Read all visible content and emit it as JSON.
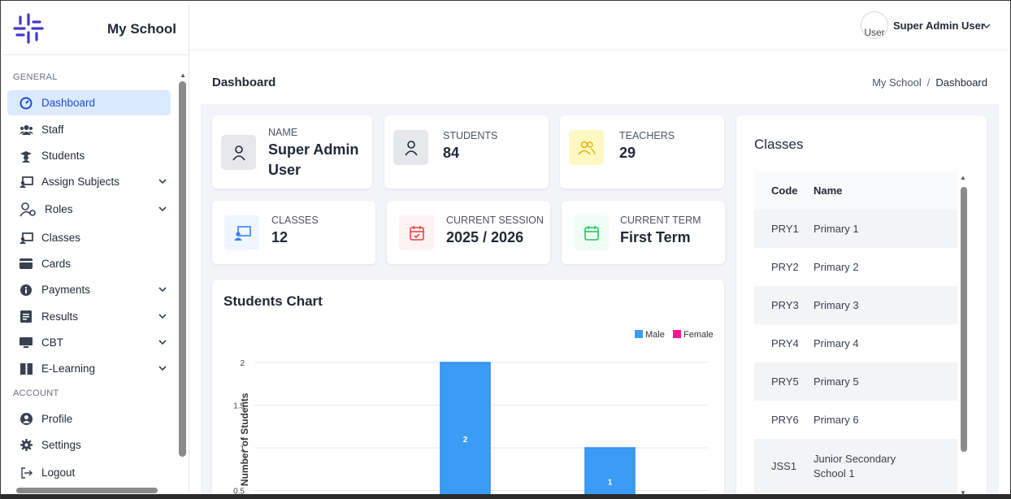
{
  "sidebar": {
    "app_name": "My School",
    "section_general": "GENERAL",
    "section_account": "ACCOUNT",
    "items": [
      {
        "label": "Dashboard",
        "icon": "gauge-icon",
        "active": true
      },
      {
        "label": "Staff",
        "icon": "users-icon"
      },
      {
        "label": "Students",
        "icon": "graduation-cap-icon"
      },
      {
        "label": "Assign Subjects",
        "icon": "chalkboard-icon",
        "chevron": true
      },
      {
        "label": "Roles",
        "icon": "user-gear-icon",
        "chevron": true
      },
      {
        "label": "Classes",
        "icon": "chalkboard-icon"
      },
      {
        "label": "Cards",
        "icon": "card-icon"
      },
      {
        "label": "Payments",
        "icon": "info-icon",
        "chevron": true
      },
      {
        "label": "Results",
        "icon": "list-icon",
        "chevron": true
      },
      {
        "label": "CBT",
        "icon": "monitor-icon",
        "chevron": true
      },
      {
        "label": "E-Learning",
        "icon": "book-icon",
        "chevron": true
      }
    ],
    "account_items": [
      {
        "label": "Profile",
        "icon": "user-circle-icon"
      },
      {
        "label": "Settings",
        "icon": "gear-icon"
      },
      {
        "label": "Logout",
        "icon": "logout-icon"
      }
    ]
  },
  "topbar": {
    "avatar_alt": "User",
    "user_name": "Super Admin User"
  },
  "header": {
    "title": "Dashboard",
    "breadcrumb": [
      "My School",
      "Dashboard"
    ]
  },
  "stats": {
    "name": {
      "label": "NAME",
      "value_line1": "Super Admin",
      "value_line2": "User"
    },
    "students": {
      "label": "STUDENTS",
      "value": "84"
    },
    "teachers": {
      "label": "TEACHERS",
      "value": "29"
    },
    "classes": {
      "label": "CLASSES",
      "value": "12"
    },
    "session": {
      "label": "CURRENT SESSION",
      "value": "2025 / 2026"
    },
    "term": {
      "label": "CURRENT TERM",
      "value": "First Term"
    }
  },
  "colors": {
    "accent": "#1d4ed8",
    "male": "#3b9cf6",
    "female": "#ff1493",
    "teachers_icon": "#eab308",
    "classes_icon": "#3b82f6",
    "session_icon": "#ef4444",
    "term_icon": "#22c55e"
  },
  "chart_title": "Students Chart",
  "chart_data": {
    "type": "bar",
    "legend": [
      "Male",
      "Female"
    ],
    "legend_position": "top-right",
    "ylabel": "Number of Students",
    "yticks": [
      "2",
      "1.5",
      "1",
      "0.5"
    ],
    "ylim": [
      0.5,
      2
    ],
    "series": [
      {
        "name": "Male",
        "values": [
          2,
          1
        ]
      }
    ],
    "data_labels": [
      "2",
      "1"
    ]
  },
  "classes": {
    "title": "Classes",
    "columns": [
      "Code",
      "Name"
    ],
    "rows": [
      {
        "code": "PRY1",
        "name": "Primary 1"
      },
      {
        "code": "PRY2",
        "name": "Primary 2"
      },
      {
        "code": "PRY3",
        "name": "Primary 3"
      },
      {
        "code": "PRY4",
        "name": "Primary 4"
      },
      {
        "code": "PRY5",
        "name": "Primary 5"
      },
      {
        "code": "PRY6",
        "name": "Primary 6"
      },
      {
        "code": "JSS1",
        "name": "Junior Secondary School 1"
      }
    ]
  }
}
